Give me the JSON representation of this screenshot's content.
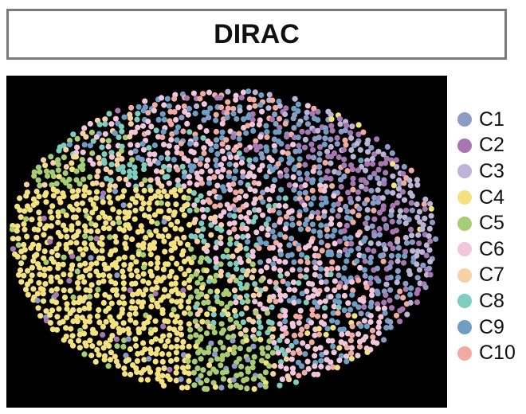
{
  "title": "DIRAC",
  "background": "#000000",
  "chart_data": {
    "type": "scatter",
    "title": "DIRAC",
    "xlabel": "",
    "ylabel": "",
    "grid": false,
    "axes_visible": false,
    "legend_position": "right",
    "series": [
      {
        "name": "C1",
        "color": "#8c9cc7"
      },
      {
        "name": "C2",
        "color": "#a777b2"
      },
      {
        "name": "C3",
        "color": "#bcb5d6"
      },
      {
        "name": "C4",
        "color": "#f4e182"
      },
      {
        "name": "C5",
        "color": "#a9cd74"
      },
      {
        "name": "C6",
        "color": "#f1c6dc"
      },
      {
        "name": "C7",
        "color": "#f6d1a6"
      },
      {
        "name": "C8",
        "color": "#7fcdbd"
      },
      {
        "name": "C9",
        "color": "#709dc4"
      },
      {
        "name": "C10",
        "color": "#f0aba2"
      }
    ]
  }
}
